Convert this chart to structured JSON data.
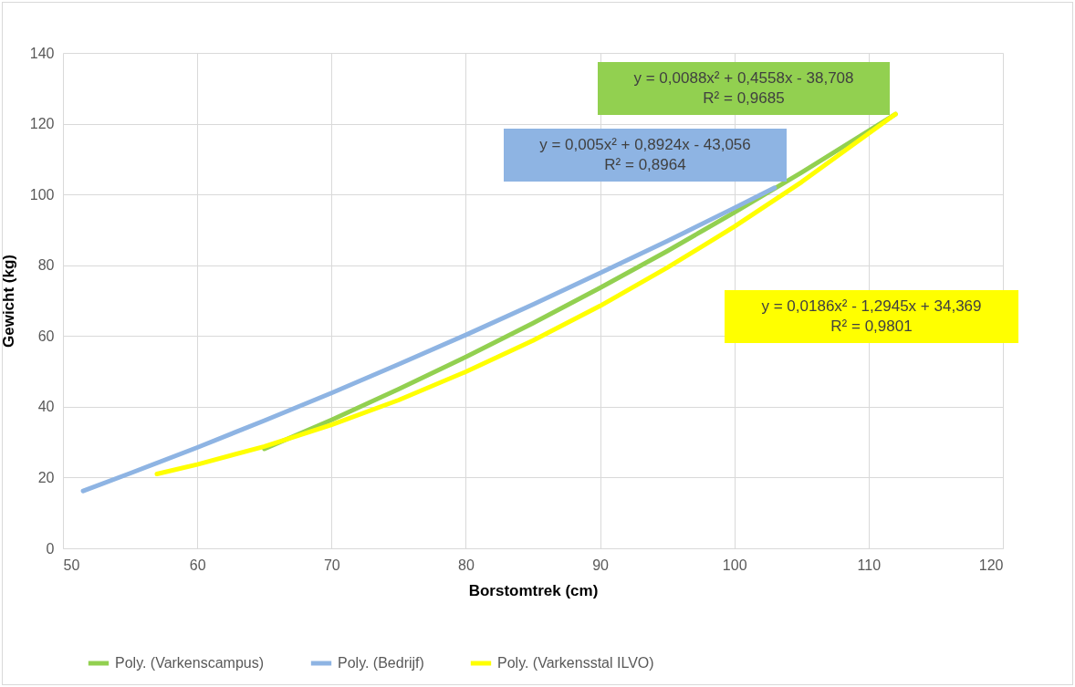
{
  "chart_data": {
    "type": "line",
    "xlabel": "Borstomtrek (cm)",
    "ylabel": "Gewicht (kg)",
    "xlim": [
      50,
      120
    ],
    "xticks": [
      50,
      60,
      70,
      80,
      90,
      100,
      110,
      120
    ],
    "ylim": [
      0,
      140
    ],
    "yticks": [
      0,
      20,
      40,
      60,
      80,
      100,
      120,
      140
    ],
    "grid": true,
    "legend": "bottom",
    "marker": "none",
    "line_style": "solid",
    "series": [
      {
        "name": "Poly. (Varkenscampus)",
        "color": "#92d050",
        "x": [
          65,
          70,
          75,
          80,
          85,
          90,
          95,
          100,
          105,
          112
        ],
        "values": [
          28.1,
          36.3,
          45.0,
          54.1,
          63.6,
          73.6,
          84.0,
          94.9,
          106.2,
          122.7
        ]
      },
      {
        "name": "Poly. (Bedrijf)",
        "color": "#8eb4e3",
        "x": [
          51.5,
          55,
          60,
          65,
          70,
          75,
          80,
          85,
          90,
          95,
          100,
          103
        ],
        "values": [
          16.2,
          21.2,
          28.5,
          36.1,
          43.9,
          52.0,
          60.3,
          68.9,
          77.8,
          86.8,
          96.2,
          101.9
        ]
      },
      {
        "name": "Poly. (Varkensstal ILVO)",
        "color": "#ffff00",
        "x": [
          57,
          60,
          65,
          70,
          75,
          80,
          85,
          90,
          95,
          100,
          105,
          112
        ],
        "values": [
          21.0,
          23.7,
          28.8,
          34.9,
          41.9,
          49.9,
          58.7,
          68.5,
          79.3,
          90.9,
          103.5,
          122.7
        ]
      }
    ],
    "annotations": [
      "y = 0,0088x² + 0,4558x - 38,708\nR² = 0,9685",
      "y = 0,005x² + 0,8924x - 43,056\nR² = 0,8964",
      "y = 0,0186x² - 1,2945x + 34,369\nR² = 0,9801"
    ]
  }
}
